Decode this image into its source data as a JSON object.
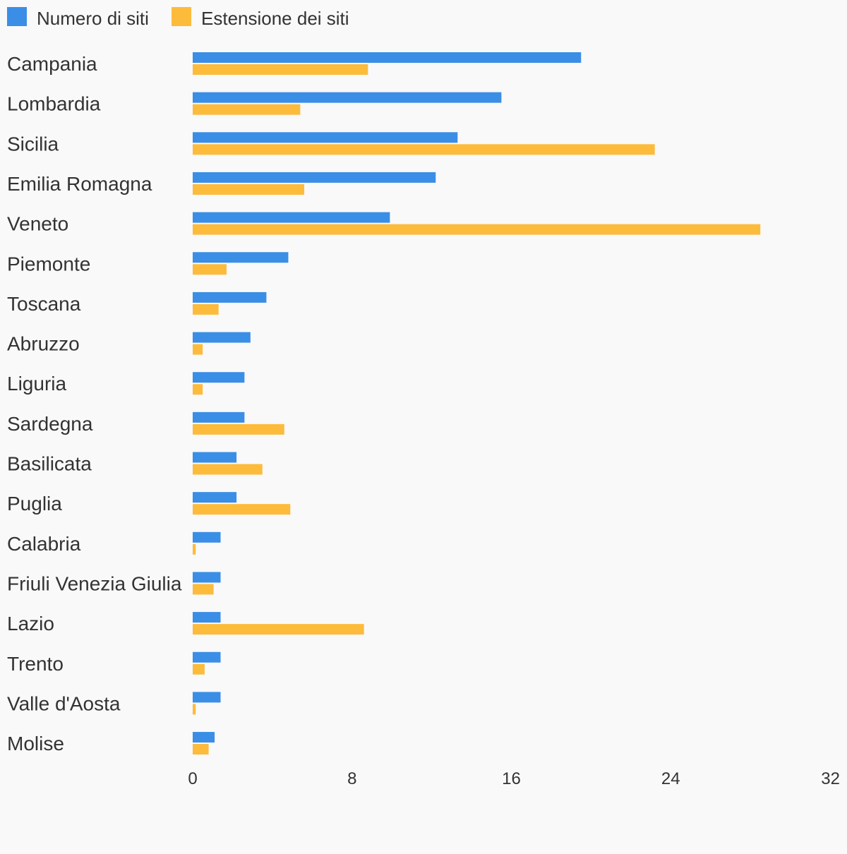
{
  "chart_data": {
    "type": "bar",
    "orientation": "horizontal",
    "title": "",
    "xlabel": "",
    "ylabel": "",
    "xlim": [
      0,
      32
    ],
    "ticks": [
      "0",
      "8",
      "16",
      "24",
      "32"
    ],
    "tick_values": [
      0,
      8,
      16,
      24,
      32
    ],
    "grid": false,
    "legend_position": "top-left",
    "categories": [
      "Campania",
      "Lombardia",
      "Sicilia",
      "Emilia Romagna",
      "Veneto",
      "Piemonte",
      "Toscana",
      "Abruzzo",
      "Liguria",
      "Sardegna",
      "Basilicata",
      "Puglia",
      "Calabria",
      "Friuli Venezia Giulia",
      "Lazio",
      "Trento",
      "Valle d'Aosta",
      "Molise"
    ],
    "series": [
      {
        "name": "Numero di siti",
        "color": "#3a8ee6",
        "values": [
          19.5,
          15.5,
          13.3,
          12.2,
          9.9,
          4.8,
          3.7,
          2.9,
          2.6,
          2.6,
          2.2,
          2.2,
          1.4,
          1.4,
          1.4,
          1.4,
          1.4,
          1.1
        ]
      },
      {
        "name": "Estensione dei siti",
        "color": "#fdbb3c",
        "values": [
          8.8,
          5.4,
          23.2,
          5.6,
          28.5,
          1.7,
          1.3,
          0.5,
          0.5,
          4.6,
          3.5,
          4.9,
          0.15,
          1.05,
          8.6,
          0.6,
          0.15,
          0.8
        ]
      }
    ]
  }
}
